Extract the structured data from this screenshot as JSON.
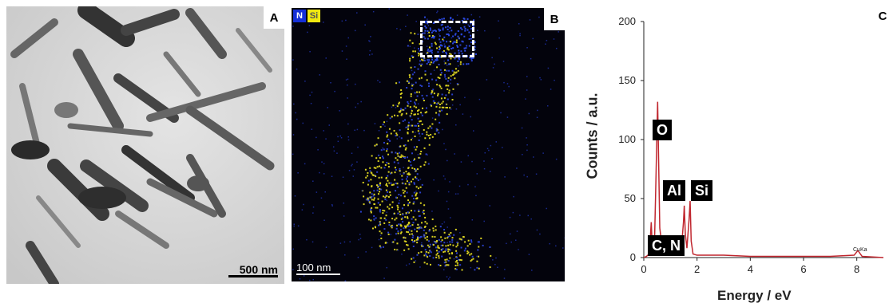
{
  "panel_a": {
    "letter": "A",
    "scale_bar": "500 nm"
  },
  "panel_b": {
    "letter": "B",
    "legend": [
      {
        "label": "N",
        "color": "#1530d8"
      },
      {
        "label": "Si",
        "color": "#f0e810"
      }
    ],
    "scale_bar": "100 nm"
  },
  "panel_c": {
    "letter": "C",
    "peak_labels": {
      "o": "O",
      "al": "Al",
      "si": "Si",
      "cn": "C, N",
      "cuka": "CuKa"
    }
  },
  "chart_data": {
    "type": "line",
    "title": "",
    "xlabel": "Energy / eV",
    "ylabel": "Counts / a.u.",
    "xlim": [
      0,
      9
    ],
    "ylim": [
      0,
      200
    ],
    "xticks": [
      0,
      2,
      4,
      6,
      8
    ],
    "yticks": [
      0,
      50,
      100,
      150,
      200
    ],
    "series": [
      {
        "color": "#c0262e",
        "x": [
          0.0,
          0.1,
          0.2,
          0.25,
          0.28,
          0.32,
          0.37,
          0.4,
          0.45,
          0.52,
          0.6,
          0.7,
          0.9,
          1.2,
          1.4,
          1.49,
          1.52,
          1.56,
          1.62,
          1.7,
          1.74,
          1.78,
          1.85,
          2.0,
          3.0,
          4.0,
          5.0,
          6.0,
          7.0,
          7.9,
          8.04,
          8.2,
          9.0
        ],
        "y": [
          0,
          1,
          3,
          18,
          30,
          8,
          4,
          10,
          60,
          132,
          25,
          6,
          3,
          2,
          4,
          30,
          44,
          20,
          8,
          32,
          48,
          14,
          3,
          2,
          2,
          1,
          1,
          1,
          1,
          2,
          6,
          1,
          0
        ]
      }
    ]
  }
}
